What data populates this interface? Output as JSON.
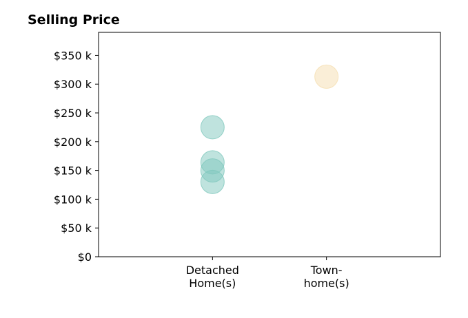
{
  "chart_data": {
    "type": "scatter",
    "title": "Selling Price",
    "xlabel": "",
    "ylabel": "",
    "categories": [
      [
        "Detached",
        "Home(s)"
      ],
      [
        "Town-",
        "home(s)"
      ]
    ],
    "y_ticks": [
      {
        "value": 0,
        "label": "$0"
      },
      {
        "value": 50000,
        "label": "$50 k"
      },
      {
        "value": 100000,
        "label": "$100 k"
      },
      {
        "value": 150000,
        "label": "$150 k"
      },
      {
        "value": 200000,
        "label": "$200 k"
      },
      {
        "value": 250000,
        "label": "$250 k"
      },
      {
        "value": 300000,
        "label": "$300 k"
      },
      {
        "value": 350000,
        "label": "$350 k"
      }
    ],
    "ylim": [
      0,
      390000
    ],
    "xlim": [
      -1,
      2
    ],
    "grid": false,
    "legend": "none",
    "points": [
      {
        "category": 0,
        "y": 225000,
        "color": "#7fc8bd"
      },
      {
        "category": 0,
        "y": 164000,
        "color": "#7fc8bd"
      },
      {
        "category": 0,
        "y": 150000,
        "color": "#7fc8bd"
      },
      {
        "category": 0,
        "y": 130000,
        "color": "#7fc8bd"
      },
      {
        "category": 1,
        "y": 313000,
        "color": "#f5deb0"
      }
    ],
    "point_opacity": 0.5
  }
}
